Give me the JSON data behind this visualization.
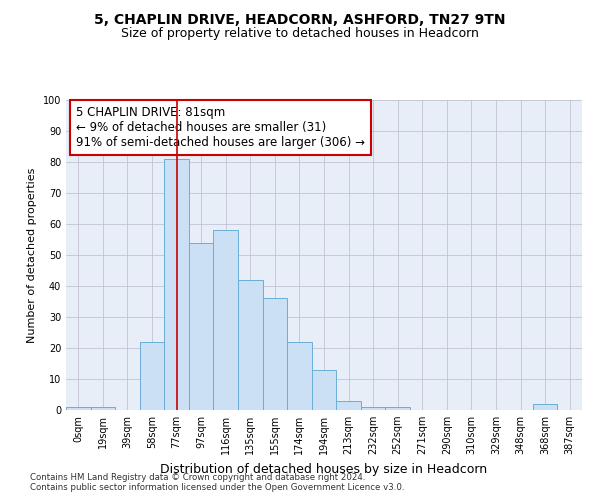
{
  "title1": "5, CHAPLIN DRIVE, HEADCORN, ASHFORD, TN27 9TN",
  "title2": "Size of property relative to detached houses in Headcorn",
  "xlabel": "Distribution of detached houses by size in Headcorn",
  "ylabel": "Number of detached properties",
  "bin_labels": [
    "0sqm",
    "19sqm",
    "39sqm",
    "58sqm",
    "77sqm",
    "97sqm",
    "116sqm",
    "135sqm",
    "155sqm",
    "174sqm",
    "194sqm",
    "213sqm",
    "232sqm",
    "252sqm",
    "271sqm",
    "290sqm",
    "310sqm",
    "329sqm",
    "348sqm",
    "368sqm",
    "387sqm"
  ],
  "bar_values": [
    1,
    1,
    0,
    22,
    81,
    54,
    58,
    42,
    36,
    22,
    13,
    3,
    1,
    1,
    0,
    0,
    0,
    0,
    0,
    2,
    0
  ],
  "bar_color": "#cce0f5",
  "bar_edge_color": "#6aaed6",
  "bar_width": 1.0,
  "property_line_x": 4,
  "property_line_color": "#cc0000",
  "annotation_line1": "5 CHAPLIN DRIVE: 81sqm",
  "annotation_line2": "← 9% of detached houses are smaller (31)",
  "annotation_line3": "91% of semi-detached houses are larger (306) →",
  "annotation_box_color": "white",
  "annotation_box_edge_color": "#cc0000",
  "ylim": [
    0,
    100
  ],
  "yticks": [
    0,
    10,
    20,
    30,
    40,
    50,
    60,
    70,
    80,
    90,
    100
  ],
  "grid_color": "#bbbbcc",
  "bg_color": "#e8eef8",
  "footer_line1": "Contains HM Land Registry data © Crown copyright and database right 2024.",
  "footer_line2": "Contains public sector information licensed under the Open Government Licence v3.0.",
  "title1_fontsize": 10,
  "title2_fontsize": 9,
  "xlabel_fontsize": 9,
  "ylabel_fontsize": 8,
  "tick_fontsize": 7,
  "annotation_fontsize": 8.5
}
